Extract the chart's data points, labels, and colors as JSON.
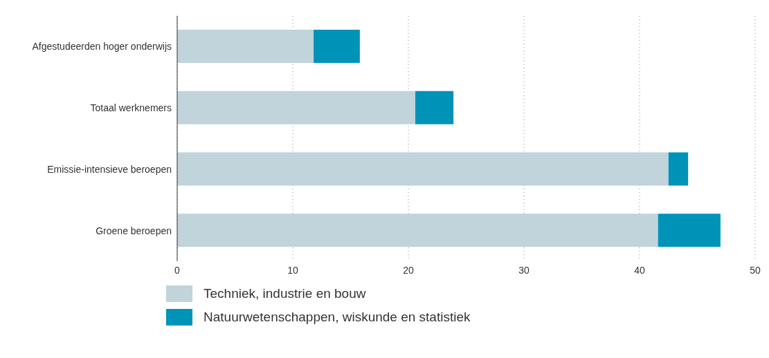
{
  "chart_data": {
    "type": "bar",
    "orientation": "horizontal",
    "stacked": true,
    "categories": [
      "Afgestudeerden hoger onderwijs",
      "Totaal werknemers",
      "Emissie-intensieve beroepen",
      "Groene beroepen"
    ],
    "series": [
      {
        "name": "Techniek, industrie en bouw",
        "color": "#c1d3db",
        "values": [
          11.8,
          20.6,
          42.5,
          41.6
        ]
      },
      {
        "name": "Natuurwetenschappen, wiskunde en statistiek",
        "color": "#0093b8",
        "values": [
          4.0,
          3.3,
          1.7,
          5.4
        ]
      }
    ],
    "xlim": [
      0,
      50
    ],
    "xticks": [
      0,
      10,
      20,
      30,
      40,
      50
    ],
    "grid": "x",
    "legend": "bottom"
  }
}
